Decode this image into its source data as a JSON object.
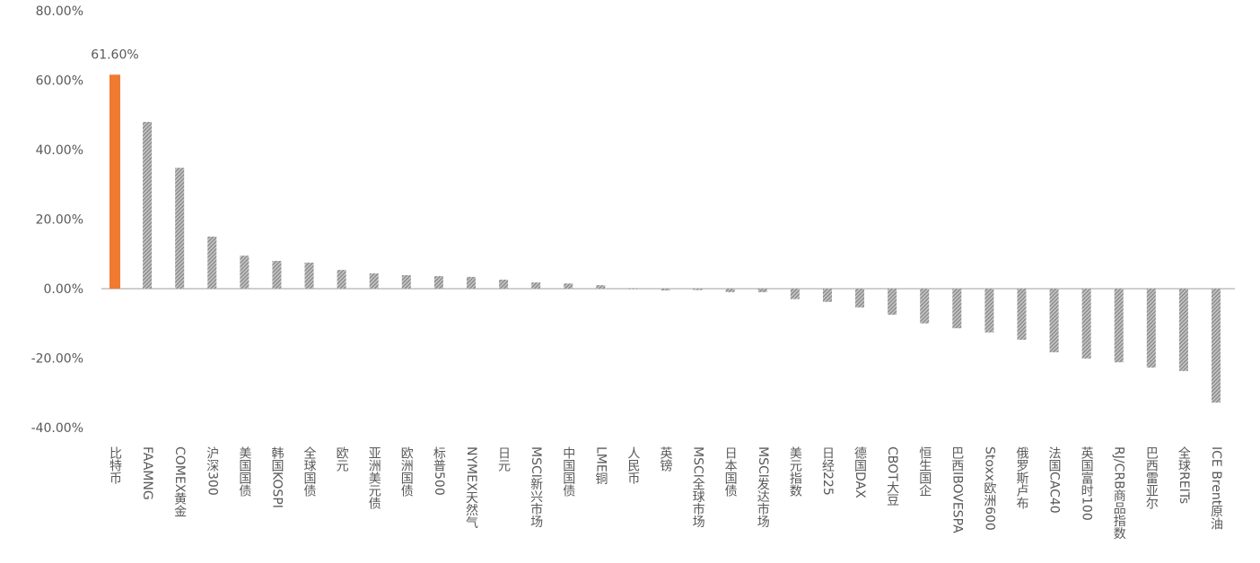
{
  "chart_data": {
    "type": "bar",
    "categories": [
      "比特币",
      "FAAMNG",
      "COMEX黄金",
      "沪深300",
      "美国国债",
      "韩国KOSPI",
      "全球国债",
      "欧元",
      "亚洲美元债",
      "欧洲国债",
      "标普500",
      "NYMEX天然气",
      "日元",
      "MSCI新兴市场",
      "中国国债",
      "LME铜",
      "人民币",
      "英镑",
      "MSCI全球市场",
      "日本国债",
      "MSCI发达市场",
      "美元指数",
      "日经225",
      "德国DAX",
      "CBOT大豆",
      "恒生国企",
      "巴西IBOVESPA",
      "Stoxx欧洲600",
      "俄罗斯卢布",
      "法国CAC40",
      "英国富时100",
      "RJ/CRB商品指数",
      "巴西雷亚尔",
      "全球REITs",
      "ICE Brent原油"
    ],
    "values": [
      61.6,
      48,
      34.8,
      15,
      9.5,
      8,
      7.5,
      5.4,
      4.4,
      3.9,
      3.6,
      3.4,
      2.6,
      1.8,
      1.5,
      1,
      0.1,
      -0.5,
      -0.4,
      -1,
      -1,
      -3,
      -3.8,
      -5.4,
      -7.5,
      -10,
      -11.4,
      -12.6,
      -14.7,
      -18.3,
      -20.1,
      -21.2,
      -22.7,
      -23.7,
      -32.8
    ],
    "value_labels": [
      "61.60%",
      null,
      null,
      null,
      null,
      null,
      null,
      null,
      null,
      null,
      null,
      null,
      null,
      null,
      null,
      null,
      null,
      null,
      null,
      null,
      null,
      null,
      null,
      null,
      null,
      null,
      null,
      null,
      null,
      null,
      null,
      null,
      null,
      null,
      null
    ],
    "colors": [
      "#f07a30",
      "#a6a6a6",
      "#a6a6a6",
      "#a6a6a6",
      "#a6a6a6",
      "#a6a6a6",
      "#a6a6a6",
      "#a6a6a6",
      "#a6a6a6",
      "#a6a6a6",
      "#a6a6a6",
      "#a6a6a6",
      "#a6a6a6",
      "#a6a6a6",
      "#a6a6a6",
      "#a6a6a6",
      "#a6a6a6",
      "#a6a6a6",
      "#a6a6a6",
      "#a6a6a6",
      "#a6a6a6",
      "#a6a6a6",
      "#a6a6a6",
      "#a6a6a6",
      "#a6a6a6",
      "#a6a6a6",
      "#a6a6a6",
      "#a6a6a6",
      "#a6a6a6",
      "#a6a6a6",
      "#a6a6a6",
      "#a6a6a6",
      "#a6a6a6",
      "#a6a6a6",
      "#a6a6a6"
    ],
    "ylim": [
      -40,
      80
    ],
    "yticks": [
      {
        "value": -40,
        "label": "-40.00%"
      },
      {
        "value": -20,
        "label": "-20.00%"
      },
      {
        "value": 0,
        "label": "0.00%"
      },
      {
        "value": 20,
        "label": "20.00%"
      },
      {
        "value": 40,
        "label": "40.00%"
      },
      {
        "value": 60,
        "label": "60.00%"
      },
      {
        "value": 80,
        "label": "80.00%"
      }
    ],
    "grid": false
  }
}
